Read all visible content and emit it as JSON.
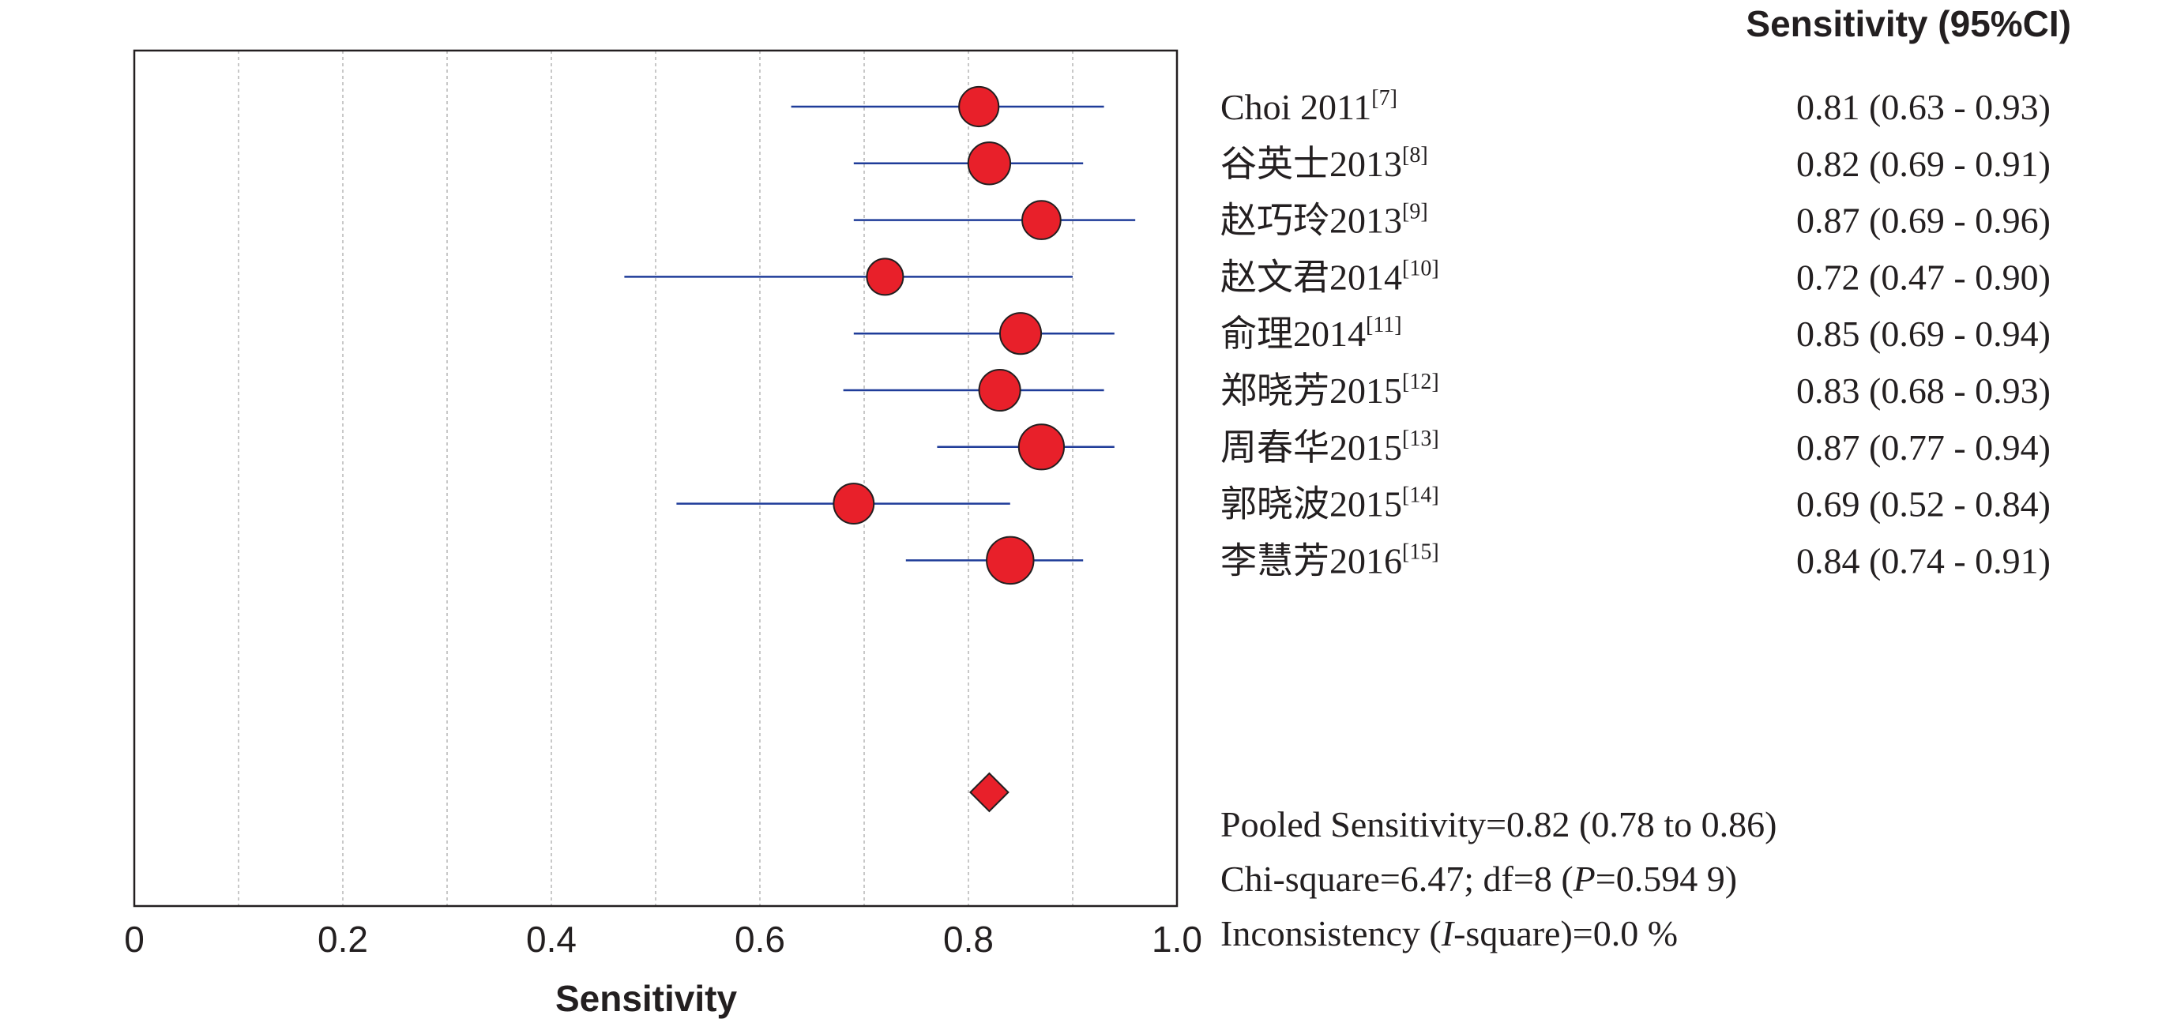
{
  "chart_data": {
    "type": "forest",
    "xlabel": "Sensitivity",
    "xlim": [
      0,
      1.0
    ],
    "x_ticks": [
      "0",
      "0.2",
      "0.4",
      "0.6",
      "0.8",
      "1.0"
    ],
    "x_tick_values": [
      0,
      0.2,
      0.4,
      0.6,
      0.8,
      1.0
    ],
    "grid_x": [
      0.1,
      0.2,
      0.3,
      0.4,
      0.5,
      0.6,
      0.7,
      0.8,
      0.9
    ],
    "column_header": "Sensitivity (95%CI)",
    "studies": [
      {
        "name": "Choi 2011",
        "ref": "[7]",
        "estimate": 0.81,
        "lower": 0.63,
        "upper": 0.93,
        "ci_text": "0.81 (0.63 - 0.93)",
        "weight": 2
      },
      {
        "name": "谷英士2013",
        "ref": "[8]",
        "estimate": 0.82,
        "lower": 0.69,
        "upper": 0.91,
        "ci_text": "0.82 (0.69 - 0.91)",
        "weight": 3
      },
      {
        "name": "赵巧玲2013",
        "ref": "[9]",
        "estimate": 0.87,
        "lower": 0.69,
        "upper": 0.96,
        "ci_text": "0.87 (0.69 - 0.96)",
        "weight": 1.6
      },
      {
        "name": "赵文君2014",
        "ref": "[10]",
        "estimate": 0.72,
        "lower": 0.47,
        "upper": 0.9,
        "ci_text": "0.72 (0.47 - 0.90)",
        "weight": 1
      },
      {
        "name": "俞理2014",
        "ref": "[11]",
        "estimate": 0.85,
        "lower": 0.69,
        "upper": 0.94,
        "ci_text": "0.85 (0.69 - 0.94)",
        "weight": 2.6
      },
      {
        "name": "郑晓芳2015",
        "ref": "[12]",
        "estimate": 0.83,
        "lower": 0.68,
        "upper": 0.93,
        "ci_text": "0.83 (0.68 - 0.93)",
        "weight": 2.6
      },
      {
        "name": "周春华2015",
        "ref": "[13]",
        "estimate": 0.87,
        "lower": 0.77,
        "upper": 0.94,
        "ci_text": "0.87 (0.77 - 0.94)",
        "weight": 4.5
      },
      {
        "name": "郭晓波2015",
        "ref": "[14]",
        "estimate": 0.69,
        "lower": 0.52,
        "upper": 0.84,
        "ci_text": "0.69 (0.52 - 0.84)",
        "weight": 2.2
      },
      {
        "name": "李慧芳2016",
        "ref": "[15]",
        "estimate": 0.84,
        "lower": 0.74,
        "upper": 0.91,
        "ci_text": "0.84 (0.74 - 0.91)",
        "weight": 5.5
      }
    ],
    "pooled": {
      "estimate": 0.82,
      "lower": 0.78,
      "upper": 0.86
    },
    "stats": {
      "pooled_text": "Pooled Sensitivity=0.82 (0.78 to 0.86)",
      "chi_prefix": "Chi-square=6.47; df=8 (",
      "chi_p": "P",
      "chi_suffix": "=0.594 9)",
      "inc_prefix": "Inconsistency (",
      "inc_i": "I",
      "inc_suffix": "-square)=0.0 %"
    },
    "colors": {
      "marker": "#e8202a",
      "ci_line": "#1f3c99",
      "grid": "#c8c8c8",
      "text": "#231f20"
    }
  }
}
